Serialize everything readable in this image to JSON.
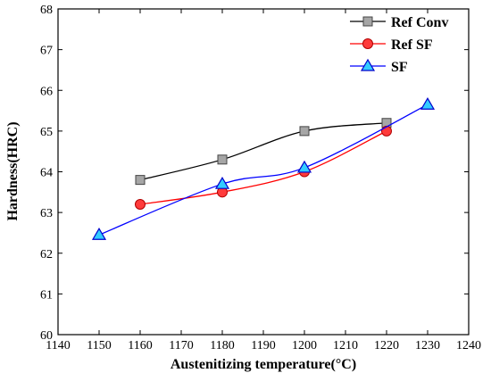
{
  "chart_data": {
    "type": "line",
    "xlabel": "Austenitizing temperature(°C)",
    "ylabel": "Hardness(HRC)",
    "xlim": [
      1140,
      1240
    ],
    "ylim": [
      60,
      68
    ],
    "xticks": [
      "1140",
      "1150",
      "1160",
      "1170",
      "1180",
      "1190",
      "1200",
      "1210",
      "1220",
      "1230",
      "1240"
    ],
    "yticks": [
      "60",
      "61",
      "62",
      "63",
      "64",
      "65",
      "66",
      "67",
      "68"
    ],
    "grid": false,
    "legend_position": "top-right",
    "series": [
      {
        "name": "Ref Conv",
        "marker": "square",
        "color": "#000000",
        "fill": "#a6a6a6",
        "x": [
          1160,
          1180,
          1200,
          1220
        ],
        "y": [
          63.8,
          64.3,
          65.0,
          65.2
        ]
      },
      {
        "name": "Ref SF",
        "marker": "circle",
        "color": "#ff0000",
        "fill": "#ff3b3b",
        "x": [
          1160,
          1180,
          1200,
          1220
        ],
        "y": [
          63.2,
          63.5,
          64.0,
          65.0
        ]
      },
      {
        "name": "SF",
        "marker": "triangle",
        "color": "#0000ff",
        "fill": "#33ccff",
        "x": [
          1150,
          1180,
          1200,
          1230
        ],
        "y": [
          62.45,
          63.7,
          64.1,
          65.65
        ]
      }
    ]
  }
}
